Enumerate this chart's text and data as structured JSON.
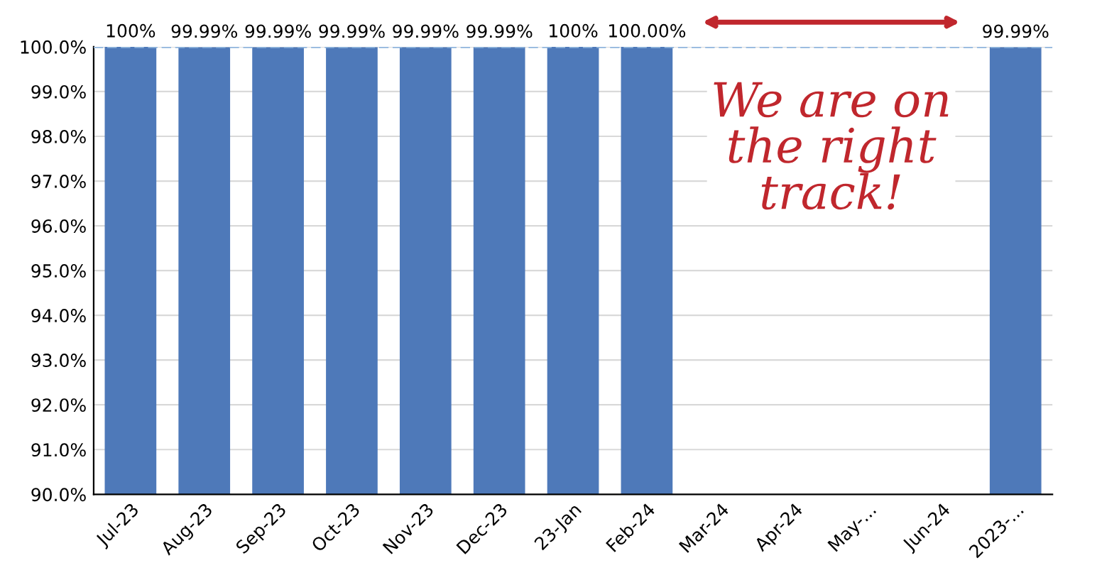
{
  "chart_data": {
    "type": "bar",
    "categories": [
      "Jul-23",
      "Aug-23",
      "Sep-23",
      "Oct-23",
      "Nov-23",
      "Dec-23",
      "23-Jan",
      "Feb-24",
      "Mar-24",
      "Apr-24",
      "May-...",
      "Jun-24",
      "2023-..."
    ],
    "values": [
      100,
      99.99,
      99.99,
      99.99,
      99.99,
      99.99,
      100,
      100,
      null,
      null,
      null,
      null,
      99.99
    ],
    "value_labels": [
      "100%",
      "99.99%",
      "99.99%",
      "99.99%",
      "99.99%",
      "99.99%",
      "100%",
      "100.00%",
      null,
      null,
      null,
      null,
      "99.99%"
    ],
    "color": "#4e79b9",
    "ylim": [
      90,
      100
    ],
    "yticks": [
      {
        "value": 90,
        "label": "90.0%"
      },
      {
        "value": 91,
        "label": "91.0%"
      },
      {
        "value": 92,
        "label": "92.0%"
      },
      {
        "value": 93,
        "label": "93.0%"
      },
      {
        "value": 94,
        "label": "94.0%"
      },
      {
        "value": 95,
        "label": "95.0%"
      },
      {
        "value": 96,
        "label": "96.0%"
      },
      {
        "value": 97,
        "label": "97.0%"
      },
      {
        "value": 98,
        "label": "98.0%"
      },
      {
        "value": 99,
        "label": "99.0%"
      },
      {
        "value": 100,
        "label": "100.0%"
      }
    ],
    "grid": "y",
    "ref_lines": [
      {
        "axis": "y",
        "value": 100,
        "color": "#8fb4dc",
        "line_style": "dashed"
      }
    ],
    "annotations": [
      "We are on the right track!"
    ]
  }
}
